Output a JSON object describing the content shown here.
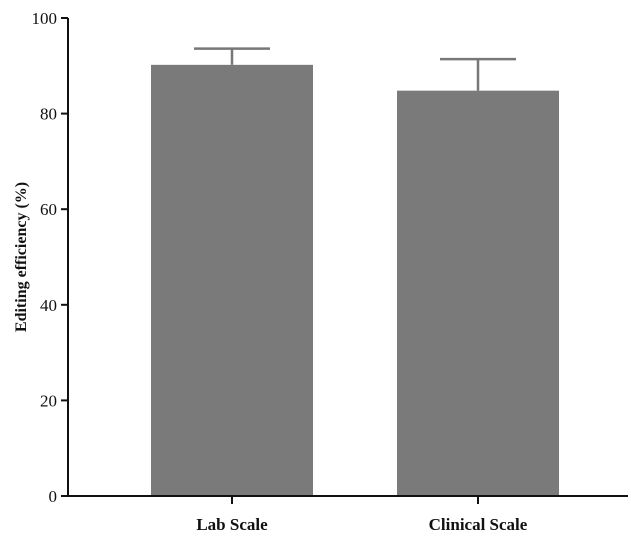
{
  "chart_data": {
    "type": "bar",
    "title": "",
    "xlabel": "",
    "ylabel": "Editing efficiency (%)",
    "categories": [
      "Lab Scale",
      "Clinical Scale"
    ],
    "values": [
      90.2,
      84.8
    ],
    "error_upper": [
      93.6,
      91.4
    ],
    "ylim": [
      0,
      100
    ],
    "yticks": [
      0,
      20,
      40,
      60,
      80,
      100
    ],
    "ytick_labels": [
      "0",
      "20",
      "40",
      "60",
      "80",
      "100"
    ],
    "grid": false,
    "legend": "none",
    "bar_color": "#7a7a7a",
    "axis_color": "#111111"
  }
}
